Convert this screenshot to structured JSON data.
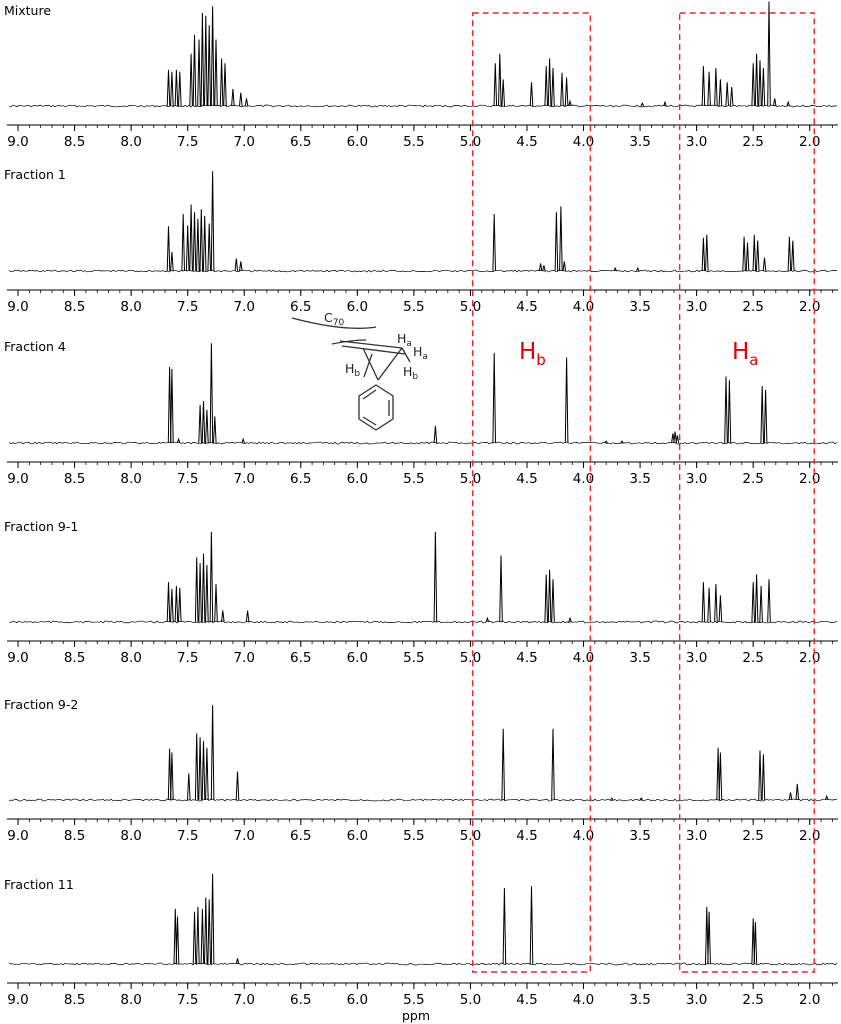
{
  "chart_data": {
    "type": "line",
    "title": "",
    "xlabel": "ppm",
    "ylabel": "",
    "xlim": [
      9.08,
      1.75
    ],
    "x_reversed": true,
    "ticks": [
      9.0,
      8.5,
      8.0,
      7.5,
      7.0,
      6.5,
      6.0,
      5.5,
      5.0,
      4.5,
      4.0,
      3.5,
      3.0,
      2.5,
      2.0
    ],
    "tick_labels": [
      "9.0",
      "8.5",
      "8.0",
      "7.5",
      "7.0",
      "6.5",
      "6.0",
      "5.5",
      "5.0",
      "4.5",
      "4.0",
      "3.5",
      "3.0",
      "2.5",
      "2.0"
    ],
    "grid": false,
    "series": [
      {
        "name": "Mixture",
        "peaks": [
          {
            "ppm": 7.67,
            "h": 0.38
          },
          {
            "ppm": 7.64,
            "h": 0.36
          },
          {
            "ppm": 7.6,
            "h": 0.38
          },
          {
            "ppm": 7.57,
            "h": 0.36
          },
          {
            "ppm": 7.47,
            "h": 0.55
          },
          {
            "ppm": 7.44,
            "h": 0.75
          },
          {
            "ppm": 7.4,
            "h": 0.7
          },
          {
            "ppm": 7.37,
            "h": 0.98
          },
          {
            "ppm": 7.34,
            "h": 0.95
          },
          {
            "ppm": 7.31,
            "h": 0.85
          },
          {
            "ppm": 7.28,
            "h": 1.05
          },
          {
            "ppm": 7.25,
            "h": 0.7
          },
          {
            "ppm": 7.2,
            "h": 0.5
          },
          {
            "ppm": 7.17,
            "h": 0.45
          },
          {
            "ppm": 7.1,
            "h": 0.18
          },
          {
            "ppm": 7.03,
            "h": 0.14
          },
          {
            "ppm": 6.98,
            "h": 0.08
          },
          {
            "ppm": 4.78,
            "h": 0.45
          },
          {
            "ppm": 4.74,
            "h": 0.55
          },
          {
            "ppm": 4.71,
            "h": 0.28
          },
          {
            "ppm": 4.46,
            "h": 0.25
          },
          {
            "ppm": 4.33,
            "h": 0.42
          },
          {
            "ppm": 4.3,
            "h": 0.5
          },
          {
            "ppm": 4.27,
            "h": 0.4
          },
          {
            "ppm": 4.19,
            "h": 0.35
          },
          {
            "ppm": 4.15,
            "h": 0.3
          },
          {
            "ppm": 4.12,
            "h": 0.05
          },
          {
            "ppm": 3.48,
            "h": 0.03
          },
          {
            "ppm": 3.28,
            "h": 0.04
          },
          {
            "ppm": 2.94,
            "h": 0.42
          },
          {
            "ppm": 2.89,
            "h": 0.36
          },
          {
            "ppm": 2.83,
            "h": 0.4
          },
          {
            "ppm": 2.79,
            "h": 0.28
          },
          {
            "ppm": 2.73,
            "h": 0.25
          },
          {
            "ppm": 2.69,
            "h": 0.2
          },
          {
            "ppm": 2.5,
            "h": 0.45
          },
          {
            "ppm": 2.47,
            "h": 0.55
          },
          {
            "ppm": 2.44,
            "h": 0.48
          },
          {
            "ppm": 2.41,
            "h": 0.4
          },
          {
            "ppm": 2.36,
            "h": 1.1
          },
          {
            "ppm": 2.31,
            "h": 0.08
          },
          {
            "ppm": 2.19,
            "h": 0.04
          }
        ]
      },
      {
        "name": "Fraction 1",
        "peaks": [
          {
            "ppm": 7.67,
            "h": 0.47
          },
          {
            "ppm": 7.64,
            "h": 0.2
          },
          {
            "ppm": 7.54,
            "h": 0.6
          },
          {
            "ppm": 7.5,
            "h": 0.48
          },
          {
            "ppm": 7.47,
            "h": 0.7
          },
          {
            "ppm": 7.44,
            "h": 0.62
          },
          {
            "ppm": 7.41,
            "h": 0.55
          },
          {
            "ppm": 7.38,
            "h": 0.65
          },
          {
            "ppm": 7.35,
            "h": 0.58
          },
          {
            "ppm": 7.31,
            "h": 0.5
          },
          {
            "ppm": 7.28,
            "h": 1.05
          },
          {
            "ppm": 7.07,
            "h": 0.13
          },
          {
            "ppm": 7.03,
            "h": 0.1
          },
          {
            "ppm": 4.79,
            "h": 0.6
          },
          {
            "ppm": 4.38,
            "h": 0.08
          },
          {
            "ppm": 4.35,
            "h": 0.06
          },
          {
            "ppm": 4.24,
            "h": 0.62
          },
          {
            "ppm": 4.2,
            "h": 0.68
          },
          {
            "ppm": 4.17,
            "h": 0.1
          },
          {
            "ppm": 3.72,
            "h": 0.03
          },
          {
            "ppm": 3.52,
            "h": 0.03
          },
          {
            "ppm": 2.94,
            "h": 0.35
          },
          {
            "ppm": 2.91,
            "h": 0.38
          },
          {
            "ppm": 2.58,
            "h": 0.36
          },
          {
            "ppm": 2.55,
            "h": 0.3
          },
          {
            "ppm": 2.49,
            "h": 0.38
          },
          {
            "ppm": 2.46,
            "h": 0.32
          },
          {
            "ppm": 2.4,
            "h": 0.14
          },
          {
            "ppm": 2.18,
            "h": 0.36
          },
          {
            "ppm": 2.15,
            "h": 0.32
          }
        ]
      },
      {
        "name": "Fraction 4",
        "peaks": [
          {
            "ppm": 7.66,
            "h": 0.8
          },
          {
            "ppm": 7.64,
            "h": 0.78
          },
          {
            "ppm": 7.58,
            "h": 0.04
          },
          {
            "ppm": 7.39,
            "h": 0.4
          },
          {
            "ppm": 7.36,
            "h": 0.44
          },
          {
            "ppm": 7.33,
            "h": 0.35
          },
          {
            "ppm": 7.29,
            "h": 1.05
          },
          {
            "ppm": 7.26,
            "h": 0.28
          },
          {
            "ppm": 7.01,
            "h": 0.04
          },
          {
            "ppm": 5.31,
            "h": 0.18
          },
          {
            "ppm": 4.79,
            "h": 0.95
          },
          {
            "ppm": 4.15,
            "h": 0.9
          },
          {
            "ppm": 3.8,
            "h": 0.02
          },
          {
            "ppm": 3.66,
            "h": 0.02
          },
          {
            "ppm": 3.21,
            "h": 0.1
          },
          {
            "ppm": 3.19,
            "h": 0.12
          },
          {
            "ppm": 3.17,
            "h": 0.08
          },
          {
            "ppm": 2.74,
            "h": 0.7
          },
          {
            "ppm": 2.71,
            "h": 0.66
          },
          {
            "ppm": 2.42,
            "h": 0.6
          },
          {
            "ppm": 2.39,
            "h": 0.56
          }
        ]
      },
      {
        "name": "Fraction 9-1",
        "peaks": [
          {
            "ppm": 7.67,
            "h": 0.42
          },
          {
            "ppm": 7.64,
            "h": 0.35
          },
          {
            "ppm": 7.6,
            "h": 0.38
          },
          {
            "ppm": 7.57,
            "h": 0.36
          },
          {
            "ppm": 7.42,
            "h": 0.68
          },
          {
            "ppm": 7.39,
            "h": 0.62
          },
          {
            "ppm": 7.36,
            "h": 0.72
          },
          {
            "ppm": 7.33,
            "h": 0.6
          },
          {
            "ppm": 7.29,
            "h": 0.95
          },
          {
            "ppm": 7.25,
            "h": 0.4
          },
          {
            "ppm": 7.19,
            "h": 0.12
          },
          {
            "ppm": 6.97,
            "h": 0.12
          },
          {
            "ppm": 5.31,
            "h": 0.95
          },
          {
            "ppm": 4.73,
            "h": 0.7
          },
          {
            "ppm": 4.33,
            "h": 0.5
          },
          {
            "ppm": 4.3,
            "h": 0.55
          },
          {
            "ppm": 4.27,
            "h": 0.45
          },
          {
            "ppm": 4.85,
            "h": 0.04
          },
          {
            "ppm": 4.12,
            "h": 0.04
          },
          {
            "ppm": 2.94,
            "h": 0.42
          },
          {
            "ppm": 2.89,
            "h": 0.36
          },
          {
            "ppm": 2.83,
            "h": 0.4
          },
          {
            "ppm": 2.79,
            "h": 0.28
          },
          {
            "ppm": 2.5,
            "h": 0.42
          },
          {
            "ppm": 2.47,
            "h": 0.5
          },
          {
            "ppm": 2.43,
            "h": 0.38
          },
          {
            "ppm": 2.36,
            "h": 0.45
          }
        ]
      },
      {
        "name": "Fraction 9-2",
        "peaks": [
          {
            "ppm": 7.66,
            "h": 0.54
          },
          {
            "ppm": 7.64,
            "h": 0.5
          },
          {
            "ppm": 7.49,
            "h": 0.28
          },
          {
            "ppm": 7.42,
            "h": 0.7
          },
          {
            "ppm": 7.39,
            "h": 0.66
          },
          {
            "ppm": 7.36,
            "h": 0.62
          },
          {
            "ppm": 7.33,
            "h": 0.55
          },
          {
            "ppm": 7.28,
            "h": 1.0
          },
          {
            "ppm": 7.06,
            "h": 0.3
          },
          {
            "ppm": 4.71,
            "h": 0.75
          },
          {
            "ppm": 4.27,
            "h": 0.75
          },
          {
            "ppm": 3.75,
            "h": 0.02
          },
          {
            "ppm": 3.49,
            "h": 0.02
          },
          {
            "ppm": 2.81,
            "h": 0.55
          },
          {
            "ppm": 2.79,
            "h": 0.5
          },
          {
            "ppm": 2.44,
            "h": 0.52
          },
          {
            "ppm": 2.41,
            "h": 0.48
          },
          {
            "ppm": 2.17,
            "h": 0.08
          },
          {
            "ppm": 2.11,
            "h": 0.17
          },
          {
            "ppm": 1.85,
            "h": 0.04
          }
        ]
      },
      {
        "name": "Fraction 11",
        "peaks": [
          {
            "ppm": 7.61,
            "h": 0.58
          },
          {
            "ppm": 7.59,
            "h": 0.5
          },
          {
            "ppm": 7.44,
            "h": 0.55
          },
          {
            "ppm": 7.41,
            "h": 0.6
          },
          {
            "ppm": 7.37,
            "h": 0.58
          },
          {
            "ppm": 7.34,
            "h": 0.7
          },
          {
            "ppm": 7.31,
            "h": 0.68
          },
          {
            "ppm": 7.28,
            "h": 0.95
          },
          {
            "ppm": 7.06,
            "h": 0.06
          },
          {
            "ppm": 4.7,
            "h": 0.8
          },
          {
            "ppm": 4.46,
            "h": 0.82
          },
          {
            "ppm": 2.91,
            "h": 0.6
          },
          {
            "ppm": 2.89,
            "h": 0.55
          },
          {
            "ppm": 2.5,
            "h": 0.48
          },
          {
            "ppm": 2.48,
            "h": 0.44
          }
        ]
      }
    ],
    "highlight_regions": [
      {
        "label": "Hb",
        "ppm_range": [
          3.94,
          4.98
        ]
      },
      {
        "label": "Ha",
        "ppm_range": [
          1.96,
          3.15
        ]
      }
    ]
  },
  "annotations": {
    "hb": {
      "main": "H",
      "sub": "b"
    },
    "ha": {
      "main": "H",
      "sub": "a"
    }
  },
  "molecule": {
    "c70": {
      "main": "C",
      "sub": "70"
    },
    "ha_top": {
      "main": "H",
      "sub": "a"
    },
    "ha_right": {
      "main": "H",
      "sub": "a"
    },
    "hb_left": {
      "main": "H",
      "sub": "b"
    },
    "hb_right": {
      "main": "H",
      "sub": "b"
    }
  },
  "colors": {
    "trace": "#000000",
    "highlight": "#e8262b",
    "annotation": "#e00000",
    "molecule": "#333333"
  }
}
